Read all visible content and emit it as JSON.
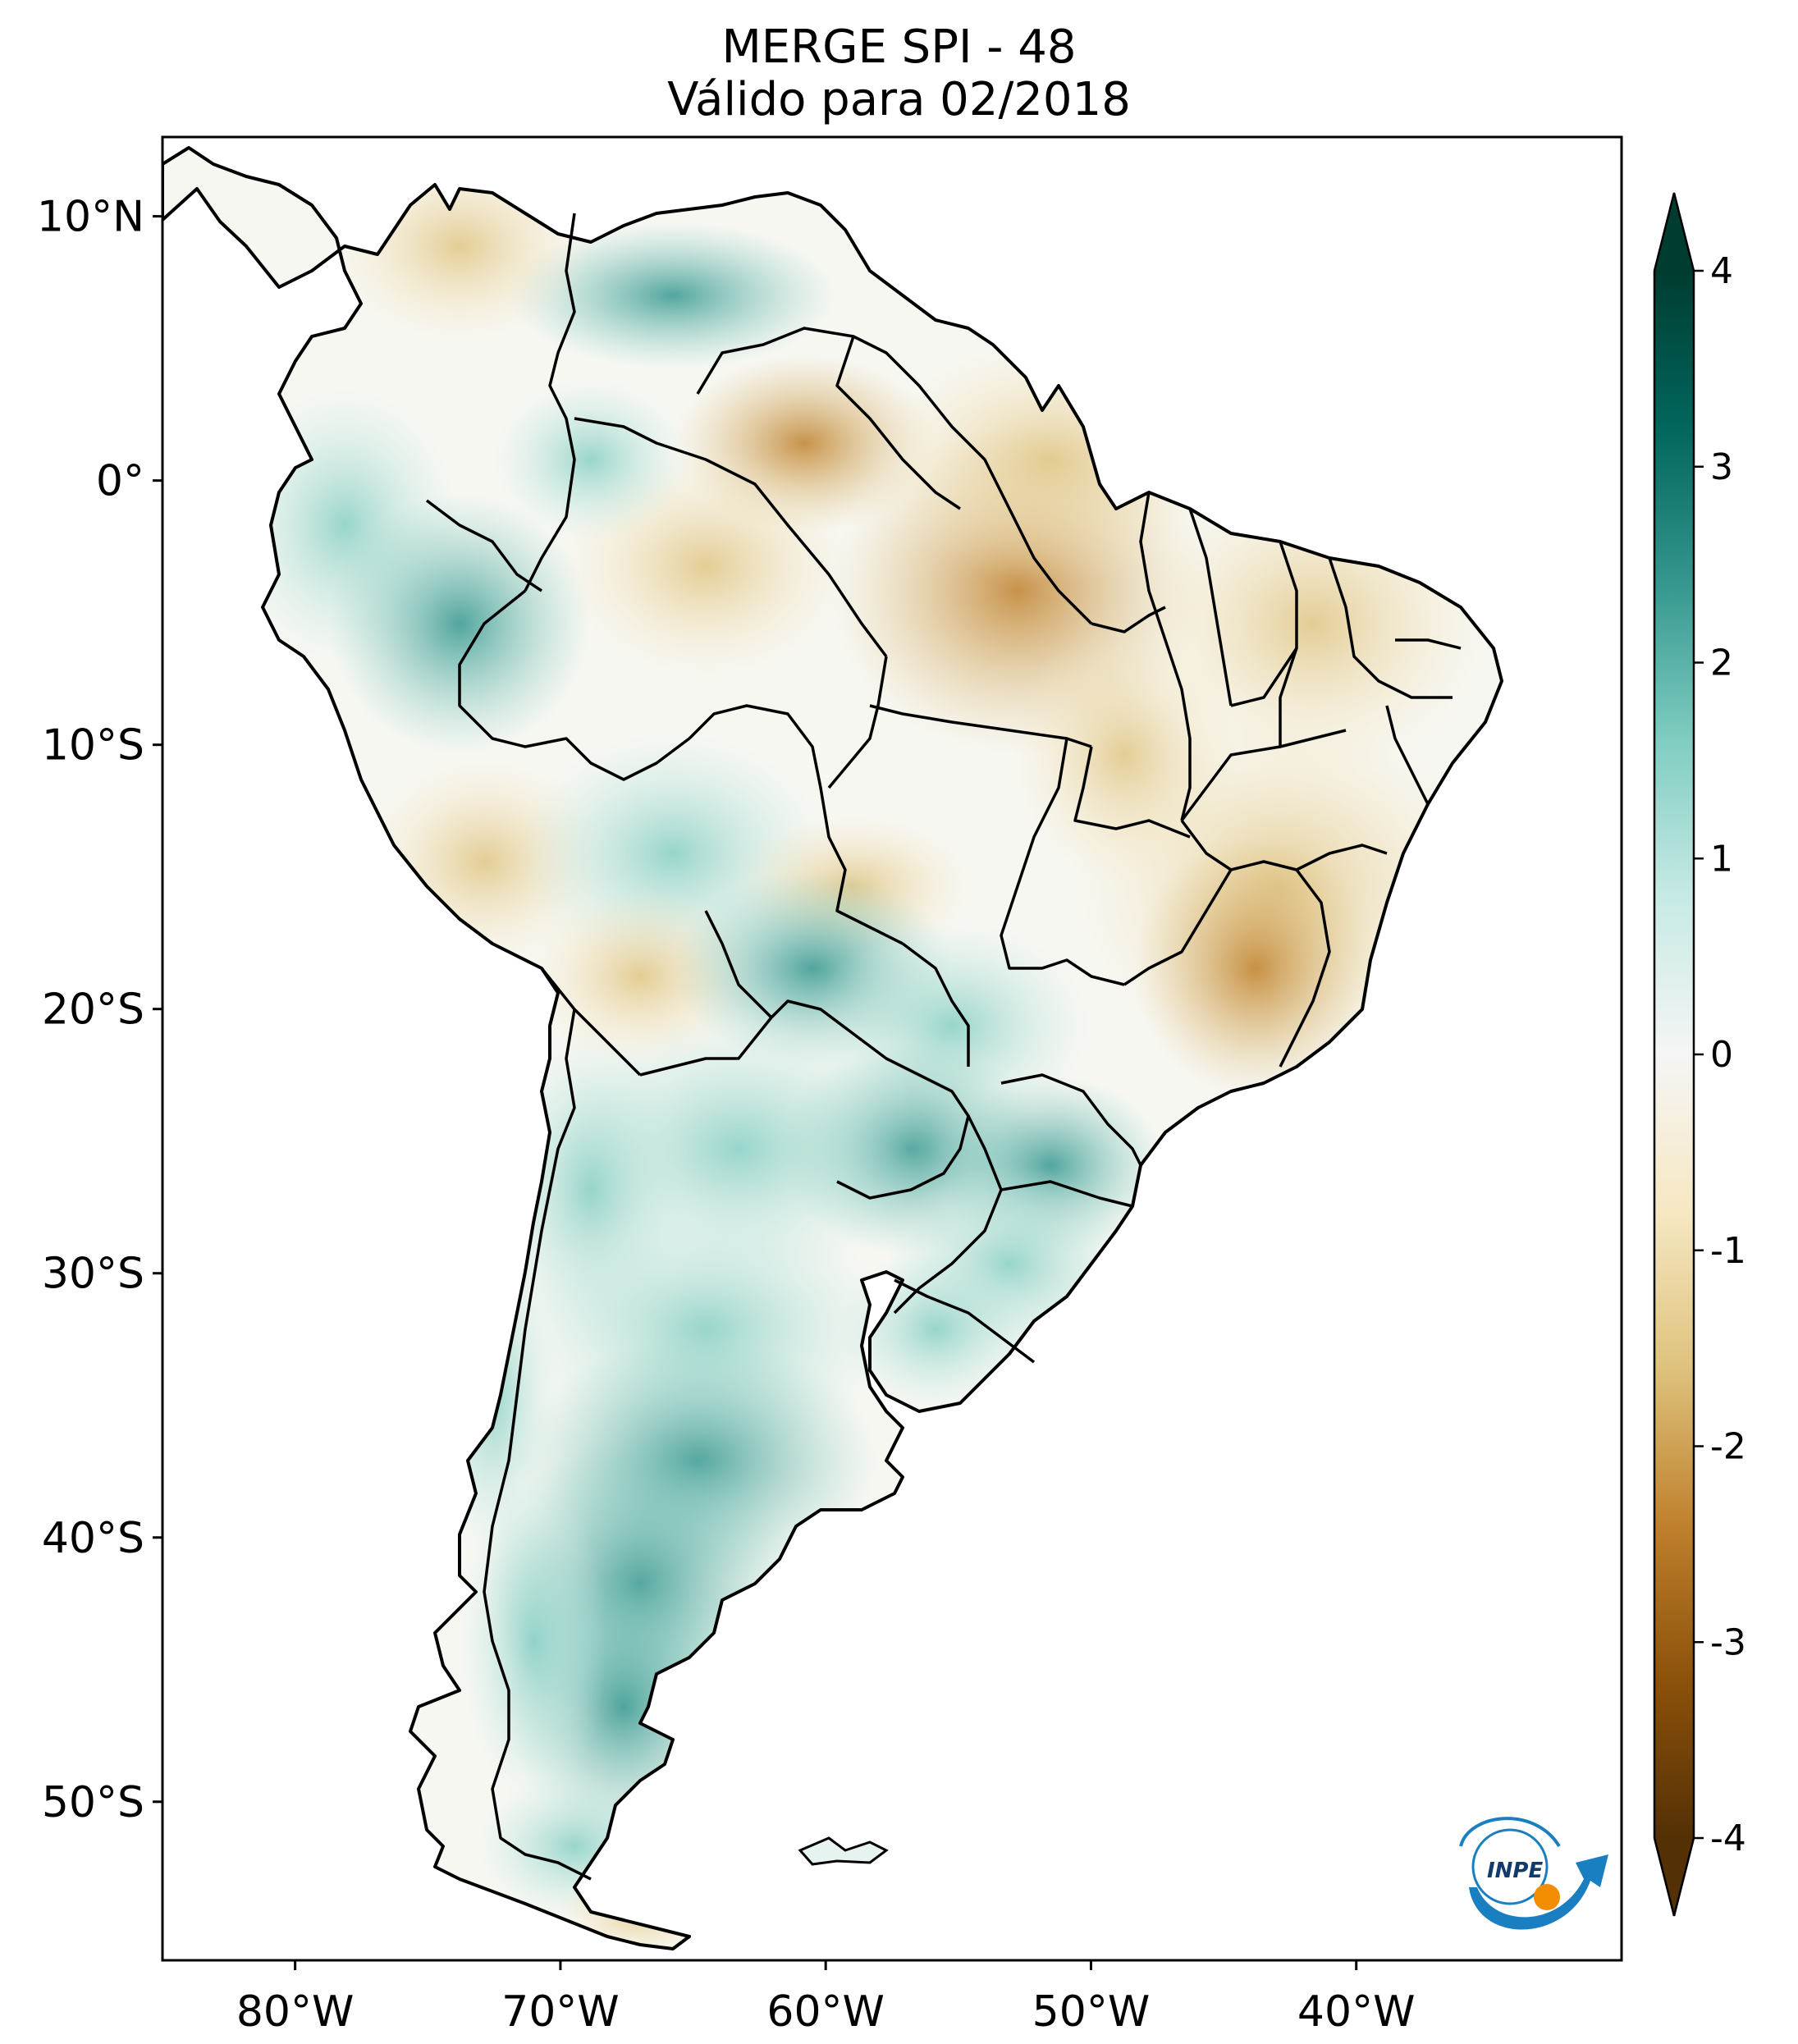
{
  "title_line1": "MERGE   SPI - 48",
  "title_line2": "Válido para 02/2018",
  "map": {
    "lon_range": [
      -85,
      -30
    ],
    "lat_range": [
      -56,
      13
    ],
    "lat_ticks": [
      {
        "lat": 10,
        "label": "10°N"
      },
      {
        "lat": 0,
        "label": "0°"
      },
      {
        "lat": -10,
        "label": "10°S"
      },
      {
        "lat": -20,
        "label": "20°S"
      },
      {
        "lat": -30,
        "label": "30°S"
      },
      {
        "lat": -40,
        "label": "40°S"
      },
      {
        "lat": -50,
        "label": "50°S"
      }
    ],
    "lon_ticks": [
      {
        "lon": -80,
        "label": "80°W"
      },
      {
        "lon": -70,
        "label": "70°W"
      },
      {
        "lon": -60,
        "label": "60°W"
      },
      {
        "lon": -50,
        "label": "50°W"
      },
      {
        "lon": -40,
        "label": "40°W"
      }
    ]
  },
  "colorbar": {
    "min": -4,
    "max": 4,
    "extend": "both",
    "ticks": [
      {
        "value": 4,
        "label": "4"
      },
      {
        "value": 3,
        "label": "3"
      },
      {
        "value": 2,
        "label": "2"
      },
      {
        "value": 1,
        "label": "1"
      },
      {
        "value": 0,
        "label": "0"
      },
      {
        "value": -1,
        "label": "-1"
      },
      {
        "value": -2,
        "label": "-2"
      },
      {
        "value": -3,
        "label": "-3"
      },
      {
        "value": -4,
        "label": "-4"
      }
    ],
    "colors": [
      "#543005",
      "#8c510a",
      "#bf812d",
      "#dfc27d",
      "#f6e8c3",
      "#f5f5f5",
      "#c7eae5",
      "#80cdc1",
      "#35978f",
      "#01665e",
      "#003c30"
    ]
  },
  "logo": {
    "text": "INPE"
  }
}
